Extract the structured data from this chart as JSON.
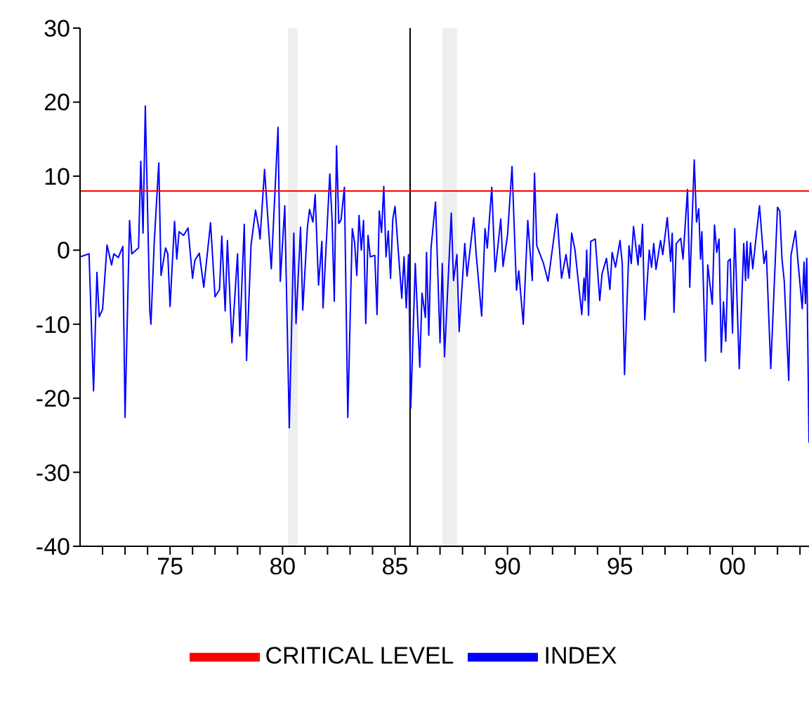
{
  "chart_data": {
    "type": "line",
    "xlim": [
      1971,
      2003.4
    ],
    "ylim": [
      -40,
      30
    ],
    "yticks": [
      -40,
      -30,
      -20,
      -10,
      0,
      10,
      20,
      30
    ],
    "xticks": [
      {
        "value": 1972,
        "label": null
      },
      {
        "value": 1973,
        "label": null
      },
      {
        "value": 1974,
        "label": null
      },
      {
        "value": 1975,
        "label": "75"
      },
      {
        "value": 1976,
        "label": null
      },
      {
        "value": 1977,
        "label": null
      },
      {
        "value": 1978,
        "label": null
      },
      {
        "value": 1979,
        "label": null
      },
      {
        "value": 1980,
        "label": "80"
      },
      {
        "value": 1981,
        "label": null
      },
      {
        "value": 1982,
        "label": null
      },
      {
        "value": 1983,
        "label": null
      },
      {
        "value": 1984,
        "label": null
      },
      {
        "value": 1985,
        "label": "85"
      },
      {
        "value": 1986,
        "label": null
      },
      {
        "value": 1987,
        "label": null
      },
      {
        "value": 1988,
        "label": null
      },
      {
        "value": 1989,
        "label": null
      },
      {
        "value": 1990,
        "label": "90"
      },
      {
        "value": 1991,
        "label": null
      },
      {
        "value": 1992,
        "label": null
      },
      {
        "value": 1993,
        "label": null
      },
      {
        "value": 1994,
        "label": null
      },
      {
        "value": 1995,
        "label": "95"
      },
      {
        "value": 1996,
        "label": null
      },
      {
        "value": 1997,
        "label": null
      },
      {
        "value": 1998,
        "label": null
      },
      {
        "value": 1999,
        "label": null
      },
      {
        "value": 2000,
        "label": "00"
      },
      {
        "value": 2001,
        "label": null
      },
      {
        "value": 2002,
        "label": null
      },
      {
        "value": 2003,
        "label": null
      }
    ],
    "grid": false,
    "legend": "bottom",
    "line_style": "solid",
    "marker": "none",
    "series": [
      {
        "name": "INDEX",
        "color": "#0000ff",
        "x": [
          1971.0,
          1971.4,
          1971.6,
          1971.75,
          1971.85,
          1972.0,
          1972.2,
          1972.4,
          1972.5,
          1972.7,
          1972.9,
          1973.0,
          1973.2,
          1973.3,
          1973.6,
          1973.7,
          1973.8,
          1973.9,
          1974.1,
          1974.15,
          1974.3,
          1974.5,
          1974.6,
          1974.8,
          1974.9,
          1975.0,
          1975.2,
          1975.3,
          1975.4,
          1975.6,
          1975.8,
          1976.0,
          1976.1,
          1976.3,
          1976.5,
          1976.8,
          1977.0,
          1977.2,
          1977.3,
          1977.45,
          1977.55,
          1977.75,
          1978.0,
          1978.1,
          1978.3,
          1978.4,
          1978.6,
          1978.8,
          1978.95,
          1979.0,
          1979.2,
          1979.5,
          1979.8,
          1979.9,
          1980.1,
          1980.3,
          1980.5,
          1980.6,
          1980.8,
          1980.9,
          1981.1,
          1981.2,
          1981.35,
          1981.45,
          1981.6,
          1981.75,
          1981.8,
          1982.1,
          1982.2,
          1982.3,
          1982.4,
          1982.5,
          1982.6,
          1982.75,
          1982.9,
          1983.1,
          1983.2,
          1983.3,
          1983.4,
          1983.5,
          1983.6,
          1983.7,
          1983.8,
          1983.9,
          1984.1,
          1984.2,
          1984.3,
          1984.4,
          1984.5,
          1984.6,
          1984.7,
          1984.8,
          1984.9,
          1985.0,
          1985.3,
          1985.4,
          1985.5,
          1985.6,
          1985.7,
          1985.9,
          1986.1,
          1986.2,
          1986.35,
          1986.4,
          1986.5,
          1986.6,
          1986.8,
          1987.0,
          1987.1,
          1987.2,
          1987.5,
          1987.6,
          1987.75,
          1987.85,
          1988.1,
          1988.2,
          1988.5,
          1988.6,
          1988.85,
          1989.0,
          1989.1,
          1989.3,
          1989.45,
          1989.7,
          1989.8,
          1990.0,
          1990.2,
          1990.4,
          1990.5,
          1990.7,
          1990.9,
          1991.1,
          1991.2,
          1991.3,
          1991.6,
          1991.8,
          1991.9,
          1992.2,
          1992.4,
          1992.6,
          1992.75,
          1992.85,
          1993.0,
          1993.3,
          1993.4,
          1993.45,
          1993.52,
          1993.6,
          1993.7,
          1993.9,
          1994.1,
          1994.2,
          1994.4,
          1994.55,
          1994.65,
          1994.8,
          1995.0,
          1995.1,
          1995.2,
          1995.4,
          1995.5,
          1995.6,
          1995.8,
          1995.85,
          1995.92,
          1996.0,
          1996.1,
          1996.3,
          1996.4,
          1996.5,
          1996.6,
          1996.8,
          1996.9,
          1997.1,
          1997.25,
          1997.32,
          1997.4,
          1997.5,
          1997.7,
          1997.8,
          1998.0,
          1998.1,
          1998.3,
          1998.4,
          1998.5,
          1998.58,
          1998.64,
          1998.8,
          1998.9,
          1999.1,
          1999.2,
          1999.3,
          1999.4,
          1999.5,
          1999.6,
          1999.7,
          1999.8,
          1999.9,
          2000.0,
          2000.1,
          2000.3,
          2000.5,
          2000.58,
          2000.64,
          2000.7,
          2000.8,
          2000.9,
          2001.1,
          2001.2,
          2001.4,
          2001.5,
          2001.7,
          2002.0,
          2002.1,
          2002.2,
          2002.3,
          2002.5,
          2002.6,
          2002.8,
          2002.9,
          2003.1,
          2003.18,
          2003.24,
          2003.3,
          2003.4
        ],
        "values": [
          -0.9,
          -0.5,
          -19,
          -3,
          -9,
          -8,
          0.7,
          -2,
          -0.5,
          -1,
          0.5,
          -22.6,
          4,
          -0.5,
          0.3,
          12,
          2.3,
          19.5,
          -8.2,
          -10,
          1.2,
          11.8,
          -3.4,
          0.3,
          -0.5,
          -7.6,
          3.9,
          -1.2,
          2.5,
          2,
          3,
          -3.8,
          -1.4,
          -0.4,
          -5,
          3.7,
          -6.3,
          -5.3,
          1.9,
          -8.2,
          1.3,
          -12.5,
          -0.5,
          -11.6,
          3.5,
          -14.9,
          0.7,
          5.4,
          2.9,
          1.5,
          10.9,
          -2.5,
          16.6,
          -4.2,
          6,
          -24,
          2.3,
          -9.9,
          3.1,
          -8.1,
          2.9,
          5.5,
          3.8,
          7.5,
          -4.7,
          1.2,
          -7.8,
          10.3,
          4.2,
          -6.9,
          14.1,
          3.6,
          4.1,
          8.5,
          -22.6,
          2.9,
          1.1,
          -3.4,
          4.7,
          0,
          4,
          -9.9,
          2,
          -0.9,
          -0.7,
          -8.7,
          5.3,
          2.4,
          8.6,
          -0.9,
          2.6,
          -3.8,
          4.2,
          5.9,
          -6.5,
          -0.9,
          -7.8,
          -0.6,
          -21.3,
          -1.8,
          -15.8,
          -5.8,
          -9.1,
          -0.3,
          -11.5,
          0.3,
          6.5,
          -12.5,
          -1.8,
          -14.4,
          5,
          -4.1,
          -0.6,
          -11,
          0.9,
          -3.5,
          4.4,
          -0.3,
          -8.9,
          2.9,
          0.3,
          8.5,
          -2.9,
          4.2,
          -2.2,
          2,
          11.3,
          -5.4,
          -2.8,
          -10,
          4,
          -4.1,
          10.4,
          0.6,
          -1.8,
          -4.2,
          -2,
          4.9,
          -3.8,
          -0.6,
          -3.8,
          2.3,
          0,
          -8.7,
          -3.8,
          -6.8,
          0,
          -8.8,
          1.2,
          1.5,
          -6.8,
          -3.2,
          -1.1,
          -5.3,
          -0.3,
          -2.3,
          1.3,
          -1.8,
          -16.8,
          0.6,
          -1.8,
          3.2,
          -2,
          0.7,
          -0.9,
          3.5,
          -9.4,
          0,
          -2.3,
          0.9,
          -2.6,
          1.3,
          -0.6,
          4.4,
          -1.5,
          2.3,
          -8.4,
          0.9,
          1.6,
          -1.2,
          8.2,
          -5,
          12.2,
          3.8,
          5.6,
          -1.2,
          2.5,
          -15,
          -2,
          -7.3,
          3.4,
          -0.3,
          1.5,
          -13.8,
          -7,
          -12.3,
          -1.5,
          -1.2,
          -11.2,
          2.9,
          -16,
          0.9,
          -4.1,
          1.2,
          -3.8,
          1,
          -2.5,
          3.2,
          6,
          -1.8,
          -0.1,
          -16,
          5.8,
          5.3,
          -1.2,
          -4.2,
          -17.6,
          -0.7,
          2.6,
          -1.2,
          -7.9,
          -1.6,
          -7.2,
          -1.1,
          -26
        ]
      },
      {
        "name": "CRITICAL LEVEL",
        "color": "#ff0000",
        "x": [
          1971,
          2003.4
        ],
        "values": [
          8,
          8
        ]
      }
    ],
    "bands": [
      {
        "axis": "x",
        "from": 1980.25,
        "to": 1980.67,
        "color": "#eeeeee"
      },
      {
        "axis": "x",
        "from": 1987.1,
        "to": 1987.75,
        "color": "#eeeeee"
      }
    ],
    "ref_lines": [
      {
        "axis": "x",
        "value": 1985.67,
        "color": "#000000"
      }
    ]
  }
}
